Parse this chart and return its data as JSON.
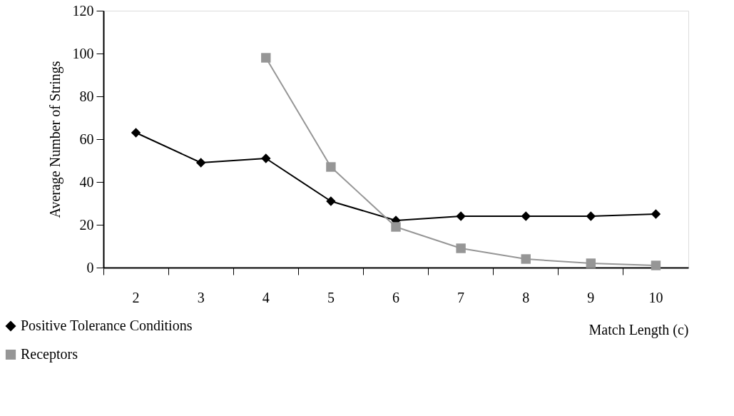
{
  "chart_data": {
    "type": "line",
    "xlabel": "Match Length (c)",
    "ylabel": "Average Number of Strings",
    "categories": [
      "2",
      "3",
      "4",
      "5",
      "6",
      "7",
      "8",
      "9",
      "10"
    ],
    "series": [
      {
        "name": "Positive Tolerance Conditions",
        "color": "#000000",
        "marker": "diamond",
        "values": [
          63,
          49,
          51,
          31,
          22,
          24,
          24,
          24,
          25
        ]
      },
      {
        "name": "Receptors",
        "color": "#969696",
        "marker": "square",
        "values": [
          null,
          null,
          98,
          47,
          19,
          9,
          4,
          2,
          1
        ]
      }
    ],
    "ylim": [
      0,
      120
    ],
    "yticks": [
      0,
      20,
      40,
      60,
      80,
      100,
      120
    ],
    "grid": false,
    "legend": "bottom left",
    "line_style": "solid"
  }
}
